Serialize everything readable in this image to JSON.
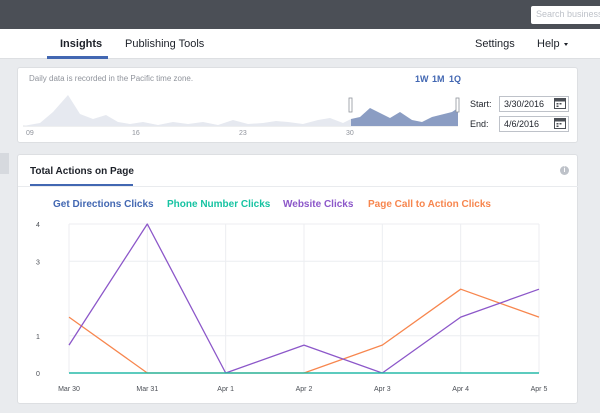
{
  "topbar": {
    "search_placeholder": "Search business"
  },
  "nav": {
    "tabs": [
      {
        "label": "Insights",
        "active": true
      },
      {
        "label": "Publishing Tools",
        "active": false
      }
    ],
    "right": [
      {
        "label": "Settings"
      },
      {
        "label": "Help"
      }
    ]
  },
  "range": {
    "note": "Daily data is recorded in the Pacific time zone.",
    "presets": [
      "1W",
      "1M",
      "1Q"
    ],
    "start_label": "Start:",
    "start_value": "3/30/2016",
    "end_label": "End:",
    "end_value": "4/6/2016",
    "axis_labels": [
      "09",
      "16",
      "23",
      "30"
    ]
  },
  "panel": {
    "title": "Total Actions on Page",
    "info": "i"
  },
  "colors": {
    "get_directions": "#4267b2",
    "phone": "#17c3a2",
    "website": "#8c57c9",
    "cta": "#f7864e"
  },
  "chart_data": {
    "type": "line",
    "categories": [
      "Mar 30",
      "Mar 31",
      "Apr 1",
      "Apr 2",
      "Apr 3",
      "Apr 4",
      "Apr 5"
    ],
    "ylim": [
      0,
      4
    ],
    "yticks": [
      0,
      1,
      3,
      4
    ],
    "series": [
      {
        "name": "Get Directions Clicks",
        "values": [
          0,
          0,
          0,
          0,
          0,
          0,
          0
        ]
      },
      {
        "name": "Phone Number Clicks",
        "values": [
          0,
          0,
          0,
          0,
          0,
          0,
          0
        ]
      },
      {
        "name": "Website Clicks",
        "values": [
          0.75,
          4,
          0,
          0.75,
          0,
          1.5,
          2.25
        ]
      },
      {
        "name": "Page Call to Action Clicks",
        "values": [
          1.5,
          0,
          0,
          0,
          0.75,
          2.25,
          1.5
        ]
      }
    ]
  }
}
